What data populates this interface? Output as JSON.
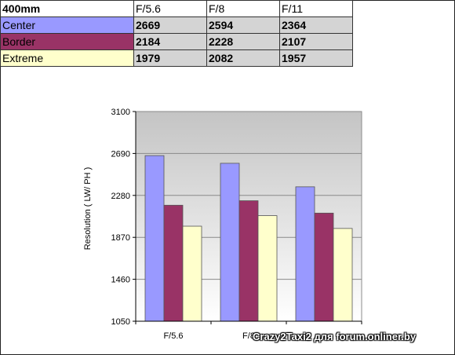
{
  "table": {
    "header": [
      "400mm",
      "F/5.6",
      "F/8",
      "F/11"
    ],
    "rows": [
      {
        "label": "Center",
        "values": [
          "2669",
          "2594",
          "2364"
        ],
        "color": "#9999ff"
      },
      {
        "label": "Border",
        "values": [
          "2184",
          "2228",
          "2107"
        ],
        "color": "#993366"
      },
      {
        "label": "Extreme",
        "values": [
          "1979",
          "2082",
          "1957"
        ],
        "color": "#ffffcc"
      }
    ]
  },
  "chart_data": {
    "type": "bar",
    "categories": [
      "F/5.6",
      "F/8",
      "F/11"
    ],
    "x_tick_labels": [
      "F/5.6",
      "F/8",
      ""
    ],
    "series": [
      {
        "name": "Center",
        "values": [
          2669,
          2594,
          2364
        ],
        "color": "#9999ff"
      },
      {
        "name": "Border",
        "values": [
          2184,
          2228,
          2107
        ],
        "color": "#993366"
      },
      {
        "name": "Extreme",
        "values": [
          1979,
          2082,
          1957
        ],
        "color": "#ffffcc"
      }
    ],
    "ylabel": "Resolution ( LW/ PH )",
    "ylim": [
      1050,
      3100
    ],
    "yticks": [
      1050,
      1460,
      1870,
      2280,
      2690,
      3100
    ],
    "grid": true
  },
  "watermark": "Crazy2Taxi2 для forum.onliner.by"
}
